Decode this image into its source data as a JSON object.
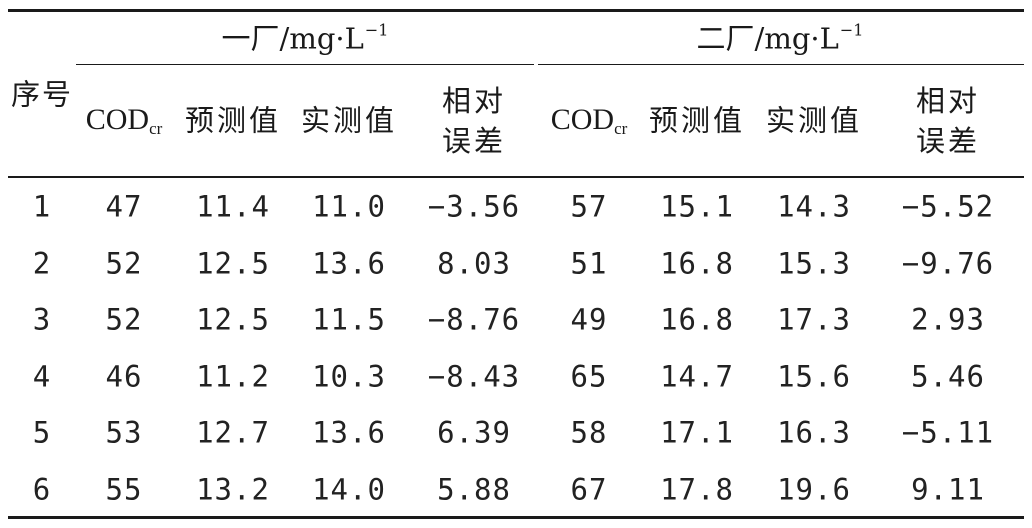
{
  "table": {
    "row_header": "序号",
    "groups": [
      {
        "label": "一厂/mg·L",
        "sup": "−1"
      },
      {
        "label": "二厂/mg·L",
        "sup": "−1"
      }
    ],
    "columns": [
      {
        "main": "COD",
        "sub": "cr"
      },
      {
        "main": "预测值"
      },
      {
        "main": "实测值"
      },
      {
        "line1": "相对",
        "line2": "误差"
      },
      {
        "main": "COD",
        "sub": "cr"
      },
      {
        "main": "预测值"
      },
      {
        "main": "实测值"
      },
      {
        "line1": "相对",
        "line2": "误差"
      }
    ],
    "rows": [
      [
        "1",
        "47",
        "11.4",
        "11.0",
        "−3.56",
        "57",
        "15.1",
        "14.3",
        "−5.52"
      ],
      [
        "2",
        "52",
        "12.5",
        "13.6",
        "8.03",
        "51",
        "16.8",
        "15.3",
        "−9.76"
      ],
      [
        "3",
        "52",
        "12.5",
        "11.5",
        "−8.76",
        "49",
        "16.8",
        "17.3",
        "2.93"
      ],
      [
        "4",
        "46",
        "11.2",
        "10.3",
        "−8.43",
        "65",
        "14.7",
        "15.6",
        "5.46"
      ],
      [
        "5",
        "53",
        "12.7",
        "13.6",
        "6.39",
        "58",
        "17.1",
        "16.3",
        "−5.11"
      ],
      [
        "6",
        "55",
        "13.2",
        "14.0",
        "5.88",
        "67",
        "17.8",
        "19.6",
        "9.11"
      ]
    ]
  }
}
